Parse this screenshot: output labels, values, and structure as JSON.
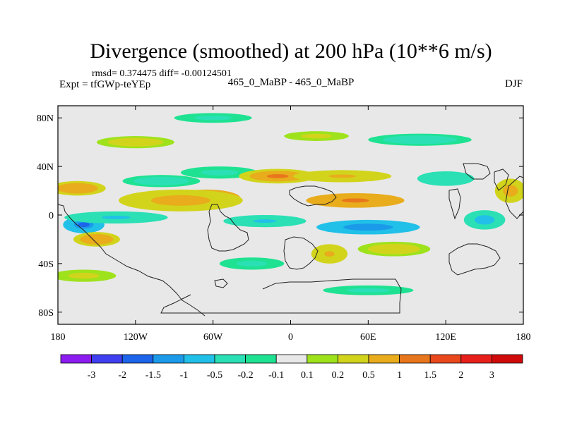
{
  "chart_data": {
    "type": "heatmap",
    "title": "Divergence (smoothed) at 200 hPa (10**6 m/s)",
    "stats": "rmsd= 0.374475 diff= -0.00124501",
    "experiment": "Expt = tfGWp-teYEp",
    "comparison": "465_0_MaBP - 465_0_MaBP",
    "season": "DJF",
    "x_range": [
      -180,
      180
    ],
    "y_range": [
      -90,
      90
    ],
    "x_ticks": [
      {
        "value": -180,
        "label": "180"
      },
      {
        "value": -120,
        "label": "120W"
      },
      {
        "value": -60,
        "label": "60W"
      },
      {
        "value": 0,
        "label": "0"
      },
      {
        "value": 60,
        "label": "60E"
      },
      {
        "value": 120,
        "label": "120E"
      },
      {
        "value": 180,
        "label": "180"
      }
    ],
    "y_ticks": [
      {
        "value": 80,
        "label": "80N"
      },
      {
        "value": 40,
        "label": "40N"
      },
      {
        "value": 0,
        "label": "0"
      },
      {
        "value": -40,
        "label": "40S"
      },
      {
        "value": -80,
        "label": "80S"
      }
    ],
    "contour_levels": [
      "-3",
      "-2",
      "-1.5",
      "-1",
      "-0.5",
      "-0.2",
      "-0.1",
      "0.1",
      "0.2",
      "0.5",
      "1",
      "1.5",
      "2",
      "3"
    ],
    "level_values": [
      -3,
      -2,
      -1.5,
      -1,
      -0.5,
      -0.2,
      -0.1,
      0.1,
      0.2,
      0.5,
      1,
      1.5,
      2,
      3
    ],
    "colors": [
      "#8c1cf0",
      "#3f3ff0",
      "#1c64ea",
      "#1c9aea",
      "#21c0e8",
      "#2ae0b4",
      "#1ee292",
      "#e8e8e8",
      "#9ee21c",
      "#d2d41c",
      "#e8ac1c",
      "#e8761c",
      "#e8481c",
      "#e8201c",
      "#d00a0a"
    ],
    "field_features": [
      {
        "lon": -65,
        "lat": 14,
        "value": 1.8,
        "rlon": 26,
        "rlat": 7
      },
      {
        "lon": -85,
        "lat": 12,
        "value": 0.7,
        "rlon": 48,
        "rlat": 9
      },
      {
        "lon": -160,
        "lat": -8,
        "value": -1.6,
        "rlon": 16,
        "rlat": 7
      },
      {
        "lon": -150,
        "lat": -20,
        "value": 0.9,
        "rlon": 18,
        "rlat": 6
      },
      {
        "lon": -135,
        "lat": -2,
        "value": -0.6,
        "rlon": 40,
        "rlat": 5
      },
      {
        "lon": -165,
        "lat": 22,
        "value": 0.8,
        "rlon": 22,
        "rlat": 6
      },
      {
        "lon": -100,
        "lat": 28,
        "value": -0.4,
        "rlon": 30,
        "rlat": 5
      },
      {
        "lon": -55,
        "lat": 35,
        "value": -0.3,
        "rlon": 30,
        "rlat": 5
      },
      {
        "lon": -10,
        "lat": 32,
        "value": 1.1,
        "rlon": 30,
        "rlat": 6
      },
      {
        "lon": 50,
        "lat": 12,
        "value": 1.2,
        "rlon": 38,
        "rlat": 6
      },
      {
        "lon": 40,
        "lat": 32,
        "value": 0.6,
        "rlon": 38,
        "rlat": 5
      },
      {
        "lon": 60,
        "lat": -10,
        "value": -1.3,
        "rlon": 40,
        "rlat": 6
      },
      {
        "lon": -20,
        "lat": -5,
        "value": -0.6,
        "rlon": 32,
        "rlat": 5
      },
      {
        "lon": 150,
        "lat": -4,
        "value": -0.8,
        "rlon": 16,
        "rlat": 8
      },
      {
        "lon": 170,
        "lat": 20,
        "value": 0.7,
        "rlon": 12,
        "rlat": 10
      },
      {
        "lon": 30,
        "lat": -32,
        "value": 0.5,
        "rlon": 14,
        "rlat": 8
      },
      {
        "lon": 80,
        "lat": -28,
        "value": 0.4,
        "rlon": 28,
        "rlat": 6
      },
      {
        "lon": -30,
        "lat": -40,
        "value": -0.3,
        "rlon": 25,
        "rlat": 5
      },
      {
        "lon": 100,
        "lat": 62,
        "value": -0.4,
        "rlon": 40,
        "rlat": 5
      },
      {
        "lon": -120,
        "lat": 60,
        "value": 0.4,
        "rlon": 30,
        "rlat": 5
      },
      {
        "lon": 20,
        "lat": 65,
        "value": 0.3,
        "rlon": 25,
        "rlat": 4
      },
      {
        "lon": 120,
        "lat": 30,
        "value": -0.5,
        "rlon": 22,
        "rlat": 6
      },
      {
        "lon": -160,
        "lat": -50,
        "value": 0.3,
        "rlon": 25,
        "rlat": 5
      },
      {
        "lon": 60,
        "lat": -62,
        "value": -0.3,
        "rlon": 35,
        "rlat": 4
      },
      {
        "lon": -60,
        "lat": 80,
        "value": -0.3,
        "rlon": 30,
        "rlat": 4
      }
    ]
  }
}
